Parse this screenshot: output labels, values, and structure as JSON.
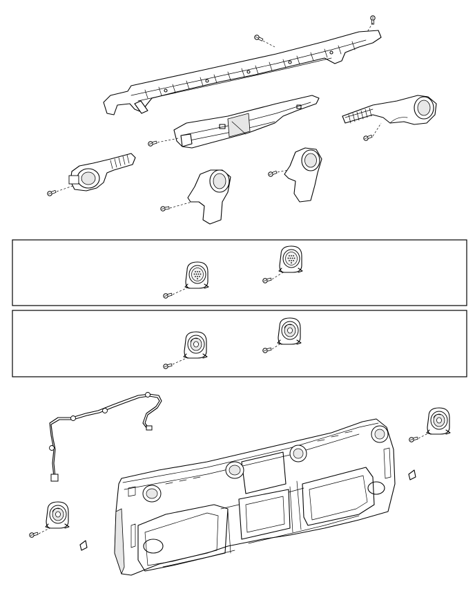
{
  "diagram": {
    "panels": [
      {
        "id": "speaker-panel-a",
        "speakers": 2
      },
      {
        "id": "speaker-panel-b",
        "speakers": 2
      }
    ],
    "icons": [
      "screw-icon",
      "speaker-icon",
      "duct-icon",
      "outlet-icon",
      "bracket-icon",
      "harness-icon",
      "clip-icon"
    ]
  }
}
